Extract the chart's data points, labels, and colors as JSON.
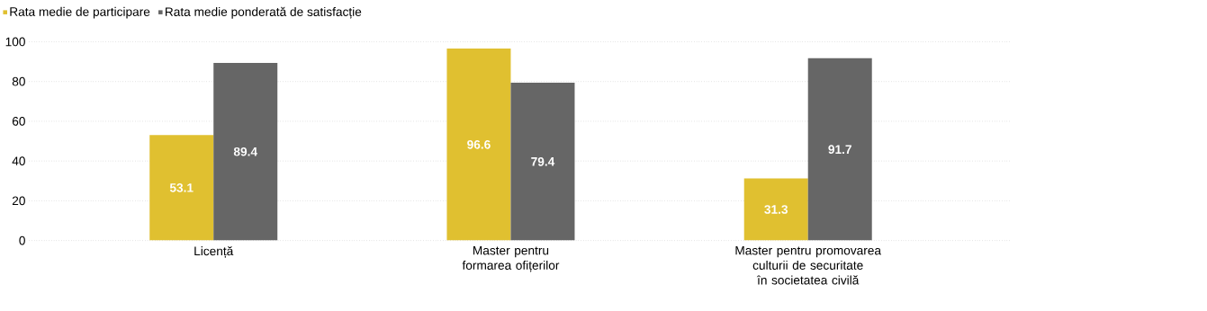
{
  "chart_data": {
    "type": "bar",
    "categories": [
      "Licență",
      "Master pentru formarea ofițerilor",
      "Master pentru promovarea culturii de securitate în societatea civilă"
    ],
    "series": [
      {
        "name": "Rata medie de participare",
        "color": "#e0c030",
        "values": [
          53.1,
          96.6,
          31.3
        ]
      },
      {
        "name": "Rata medie ponderată de satisfacție",
        "color": "#666666",
        "values": [
          89.4,
          79.4,
          91.7
        ]
      }
    ],
    "ylim": [
      0,
      100
    ],
    "yticks": [
      0,
      20,
      40,
      60,
      80,
      100
    ],
    "grid": "y",
    "legend": "top left",
    "data_labels": true
  }
}
